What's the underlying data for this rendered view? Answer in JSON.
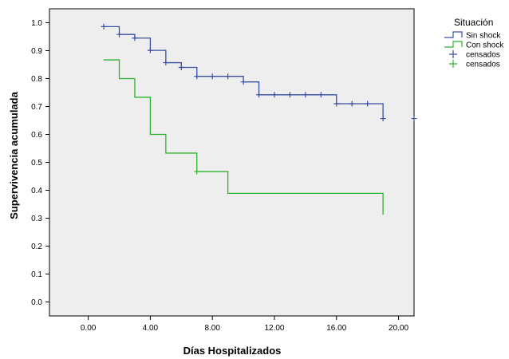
{
  "chart_data": {
    "type": "line",
    "xlabel": "Días Hospitalizados",
    "ylabel": "Supervivencia acumulada",
    "xlim": [
      -2.5,
      21
    ],
    "ylim": [
      -0.05,
      1.05
    ],
    "x_ticks": [
      0,
      4,
      8,
      12,
      16,
      20
    ],
    "x_tick_labels": [
      "0.00",
      "4.00",
      "8.00",
      "12.00",
      "16.00",
      "20.00"
    ],
    "y_ticks": [
      0.0,
      0.1,
      0.2,
      0.3,
      0.4,
      0.5,
      0.6,
      0.7,
      0.8,
      0.9,
      1.0
    ],
    "y_tick_labels": [
      "0.0",
      "0.1",
      "0.2",
      "0.3",
      "0.4",
      "0.5",
      "0.6",
      "0.7",
      "0.8",
      "0.9",
      "1.0"
    ],
    "plot_background": "#eeeeee",
    "grid": false,
    "legend": {
      "title": "Situación",
      "position": "right",
      "entries": [
        {
          "label": "Sin shock",
          "color": "#3b4fa3",
          "marker": "step"
        },
        {
          "label": "Con shock",
          "color": "#2fb32f",
          "marker": "step"
        },
        {
          "label": "censados",
          "color": "#3b4fa3",
          "marker": "plus"
        },
        {
          "label": "censados",
          "color": "#2fb32f",
          "marker": "plus"
        }
      ]
    },
    "series": [
      {
        "name": "Sin shock",
        "color": "#3b4fa3",
        "steps": [
          [
            1,
            0.986
          ],
          [
            2,
            0.958
          ],
          [
            3,
            0.945
          ],
          [
            4,
            0.901
          ],
          [
            5,
            0.857
          ],
          [
            6,
            0.84
          ],
          [
            7,
            0.808
          ],
          [
            10,
            0.788
          ],
          [
            11,
            0.742
          ],
          [
            16,
            0.71
          ],
          [
            19,
            0.657
          ]
        ],
        "censored": [
          [
            1,
            0.986
          ],
          [
            2,
            0.958
          ],
          [
            3,
            0.945
          ],
          [
            4,
            0.901
          ],
          [
            5,
            0.857
          ],
          [
            6,
            0.84
          ],
          [
            7,
            0.808
          ],
          [
            8,
            0.808
          ],
          [
            9,
            0.808
          ],
          [
            10,
            0.788
          ],
          [
            11,
            0.742
          ],
          [
            12,
            0.742
          ],
          [
            13,
            0.742
          ],
          [
            14,
            0.742
          ],
          [
            15,
            0.742
          ],
          [
            16,
            0.71
          ],
          [
            17,
            0.71
          ],
          [
            18,
            0.71
          ],
          [
            19,
            0.657
          ],
          [
            21,
            0.657
          ]
        ]
      },
      {
        "name": "Con shock",
        "color": "#2fb32f",
        "steps": [
          [
            1,
            0.867
          ],
          [
            2,
            0.8
          ],
          [
            3,
            0.733
          ],
          [
            4,
            0.6
          ],
          [
            5,
            0.533
          ],
          [
            7,
            0.467
          ],
          [
            9,
            0.389
          ],
          [
            19,
            0.313
          ]
        ],
        "censored": [
          [
            7,
            0.467
          ]
        ]
      }
    ]
  }
}
